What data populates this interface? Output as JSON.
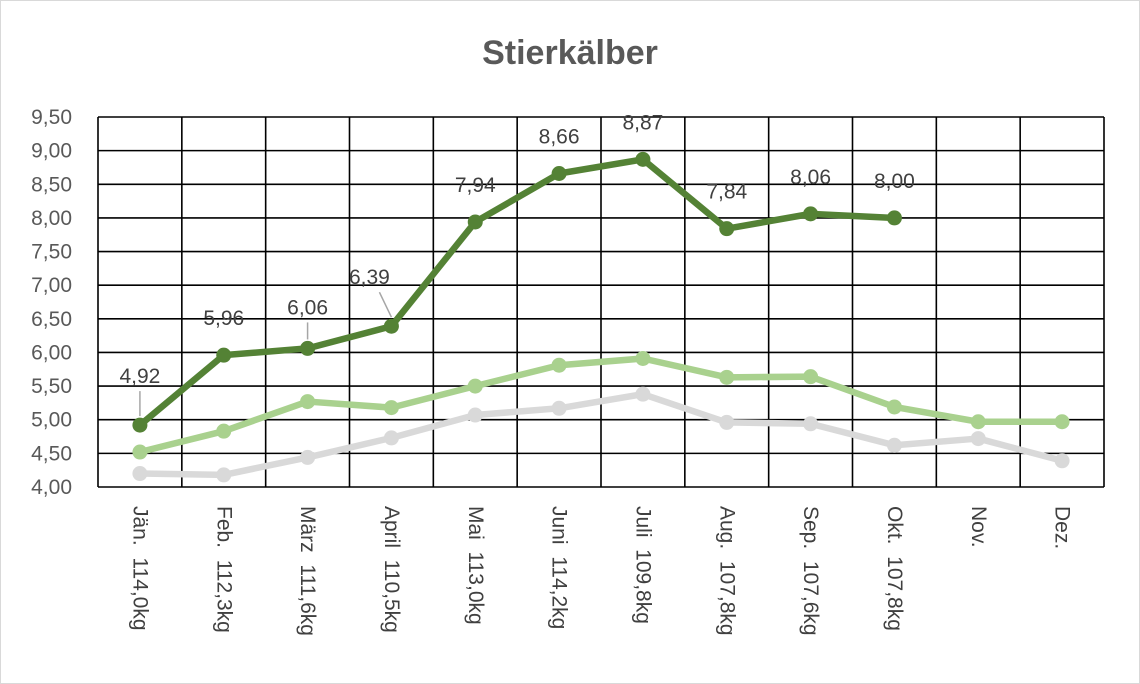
{
  "chart_data": {
    "type": "line",
    "title": "Stierkälber",
    "xlabel": "",
    "ylabel": "",
    "ylim": [
      4.0,
      9.5
    ],
    "ytick_labels": [
      "4,00",
      "4,50",
      "5,00",
      "5,50",
      "6,00",
      "6,50",
      "7,00",
      "7,50",
      "8,00",
      "8,50",
      "9,00",
      "9,50"
    ],
    "categories": [
      {
        "month": "Jän.",
        "weight": "114,0kg"
      },
      {
        "month": "Feb.",
        "weight": "112,3kg"
      },
      {
        "month": "März",
        "weight": "111,6kg"
      },
      {
        "month": "April",
        "weight": "110,5kg"
      },
      {
        "month": "Mai",
        "weight": "113,0kg"
      },
      {
        "month": "Juni",
        "weight": "114,2kg"
      },
      {
        "month": "Juli",
        "weight": "109,8kg"
      },
      {
        "month": "Aug.",
        "weight": "107,8kg"
      },
      {
        "month": "Sep.",
        "weight": "107,6kg"
      },
      {
        "month": "Okt.",
        "weight": "107,8kg"
      },
      {
        "month": "Nov.",
        "weight": ""
      },
      {
        "month": "Dez.",
        "weight": ""
      }
    ],
    "grid": true,
    "legend": "none",
    "series": [
      {
        "color": "#d9d9d9",
        "values": [
          4.2,
          4.18,
          4.44,
          4.73,
          5.07,
          5.17,
          5.38,
          4.96,
          4.94,
          4.62,
          4.72,
          4.39
        ]
      },
      {
        "color": "#a9d18e",
        "values": [
          4.52,
          4.83,
          5.27,
          5.18,
          5.5,
          5.81,
          5.91,
          5.63,
          5.64,
          5.19,
          4.97,
          4.97
        ]
      },
      {
        "color": "#548235",
        "values": [
          4.92,
          5.96,
          6.06,
          6.39,
          7.94,
          8.66,
          8.87,
          7.84,
          8.06,
          8.0,
          null,
          null
        ],
        "data_labels": [
          "4,92",
          "5,96",
          "6,06",
          "6,39",
          "7,94",
          "8,66",
          "8,87",
          "7,84",
          "8,06",
          "8,00",
          "",
          ""
        ]
      }
    ]
  }
}
